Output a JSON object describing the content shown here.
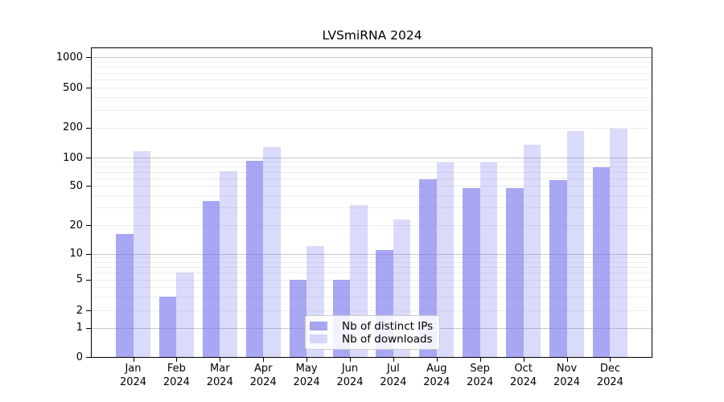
{
  "chart_data": {
    "type": "bar",
    "title": "LVSmiRNA 2024",
    "categories": [
      "Jan",
      "Feb",
      "Mar",
      "Apr",
      "May",
      "Jun",
      "Jul",
      "Aug",
      "Sep",
      "Oct",
      "Nov",
      "Dec"
    ],
    "category_year": "2024",
    "series": [
      {
        "name": "Nb of distinct IPs",
        "color": "rgba(120,120,238,0.65)",
        "values": [
          16,
          3,
          35,
          93,
          5,
          5,
          11,
          59,
          48,
          48,
          58,
          79
        ]
      },
      {
        "name": "Nb of downloads",
        "color": "rgba(120,120,238,0.27)",
        "values": [
          115,
          6,
          72,
          128,
          12,
          32,
          23,
          89,
          89,
          135,
          183,
          194
        ]
      }
    ],
    "xlabel": "",
    "ylabel": "",
    "y_axis": {
      "scale": "symlog",
      "tick_values": [
        0,
        1,
        2,
        5,
        10,
        20,
        50,
        100,
        200,
        500,
        1000
      ],
      "minor_tick_values": [
        2,
        3,
        4,
        5,
        6,
        7,
        8,
        9,
        20,
        30,
        40,
        50,
        60,
        70,
        80,
        90,
        200,
        300,
        400,
        500,
        600,
        700,
        800,
        900
      ],
      "decade_values": [
        1,
        10,
        100,
        1000
      ],
      "range_top": 1300
    },
    "grid": true,
    "legend": {
      "position": "lower-center"
    },
    "colors": {
      "background": "#ffffff",
      "grid_minor": "#ececec",
      "grid_decade": "#c6c6c6",
      "spine": "#000000",
      "text": "#000000"
    }
  }
}
